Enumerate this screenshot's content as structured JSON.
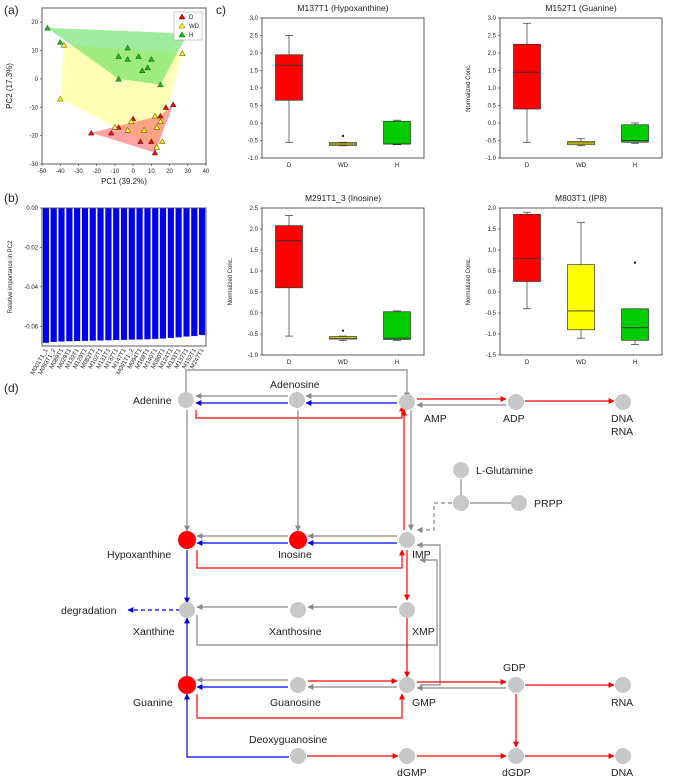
{
  "panel_labels": {
    "a": "(a)",
    "b": "(b)",
    "c": "c)",
    "d": "(d)"
  },
  "colors": {
    "D": "#ff0000",
    "WD": "#ffff00",
    "H": "#00cc00",
    "bar": "#0000ee",
    "node": "#c8c8c8",
    "node_hit": "#ff0000",
    "edge_red": "#ff0000",
    "edge_blue": "#0000ee",
    "edge_gray": "#888888"
  },
  "chart_data": [
    {
      "type": "scatter",
      "xlabel": "PC1 (39.2%)",
      "ylabel": "PC2 (17.3%)",
      "xlim": [
        -50,
        40
      ],
      "ylim": [
        -30,
        25
      ],
      "xticks": [
        -50,
        -40,
        -30,
        -20,
        -10,
        0,
        10,
        20,
        30,
        40
      ],
      "yticks": [
        -30,
        -20,
        -10,
        0,
        10,
        20
      ],
      "legend": {
        "placement": "top-right",
        "entries": [
          "D",
          "WD",
          "H"
        ]
      },
      "series": [
        {
          "name": "D",
          "points": [
            [
              -23,
              -19
            ],
            [
              -12,
              -19
            ],
            [
              -8,
              -17
            ],
            [
              0,
              -14
            ],
            [
              4,
              -22
            ],
            [
              10,
              -22
            ],
            [
              12,
              -26
            ],
            [
              15,
              -13
            ],
            [
              18,
              -10
            ],
            [
              22,
              -9
            ]
          ]
        },
        {
          "name": "WD",
          "points": [
            [
              -40,
              -7
            ],
            [
              -38,
              12
            ],
            [
              -10,
              -17
            ],
            [
              -3,
              -18
            ],
            [
              -1,
              -15
            ],
            [
              6,
              -18
            ],
            [
              12,
              -13
            ],
            [
              13,
              -17
            ],
            [
              13,
              -24
            ],
            [
              15,
              -15
            ],
            [
              16,
              -22
            ],
            [
              27,
              9
            ]
          ]
        },
        {
          "name": "H",
          "points": [
            [
              -47,
              18
            ],
            [
              -40,
              13
            ],
            [
              -8,
              0
            ],
            [
              -8,
              8
            ],
            [
              -3,
              7
            ],
            [
              -3,
              11
            ],
            [
              3,
              8
            ],
            [
              5,
              3
            ],
            [
              8,
              4
            ],
            [
              10,
              7
            ],
            [
              15,
              -2
            ],
            [
              30,
              16
            ]
          ]
        }
      ],
      "hulls": [
        {
          "name": "WD",
          "points": [
            [
              -40,
              -7
            ],
            [
              -38,
              12
            ],
            [
              27,
              9
            ],
            [
              13,
              -24
            ],
            [
              -10,
              -17
            ]
          ]
        },
        {
          "name": "H",
          "points": [
            [
              -47,
              18
            ],
            [
              30,
              16
            ],
            [
              15,
              -2
            ],
            [
              -8,
              0
            ]
          ]
        },
        {
          "name": "D",
          "points": [
            [
              -23,
              -19
            ],
            [
              15,
              -13
            ],
            [
              22,
              -9
            ],
            [
              12,
              -26
            ]
          ]
        }
      ]
    },
    {
      "type": "bar",
      "ylabel": "Relative importance in PC2",
      "ylim": [
        -0.07,
        0.0
      ],
      "yticks": [
        0.0,
        -0.02,
        -0.04,
        -0.06
      ],
      "categories": [
        "M001T1_1",
        "M093T1_2",
        "M089T1",
        "M029T1",
        "M132T1",
        "M129T1",
        "M082T1",
        "M102T1",
        "M131T1",
        "M137T1",
        "M147T1",
        "M091T1_2",
        "M094T1",
        "M169T1",
        "M140T1",
        "M080T1",
        "M124T1",
        "M133T1",
        "M137T1",
        "M152T1",
        "M247T1"
      ],
      "values": [
        -0.0685,
        -0.068,
        -0.0678,
        -0.0677,
        -0.0676,
        -0.0675,
        -0.0674,
        -0.0673,
        -0.0672,
        -0.0671,
        -0.067,
        -0.0669,
        -0.0668,
        -0.0667,
        -0.0665,
        -0.0663,
        -0.066,
        -0.0657,
        -0.0653,
        -0.065,
        -0.0645
      ]
    },
    {
      "type": "box",
      "title": "M137T1 (Hypoxanthine)",
      "ylabel": "",
      "ylim": [
        -1.0,
        3.0
      ],
      "yticks": [
        -1.0,
        -0.5,
        0.0,
        0.5,
        1.0,
        1.5,
        2.0,
        2.5,
        3.0
      ],
      "categories": [
        "D",
        "WD",
        "H"
      ],
      "boxes": [
        {
          "group": "D",
          "min": -0.55,
          "q1": 0.65,
          "median": 1.65,
          "q3": 1.95,
          "max": 2.5,
          "outliers": []
        },
        {
          "group": "WD",
          "min": -0.65,
          "q1": -0.64,
          "median": -0.6,
          "q3": -0.56,
          "max": -0.55,
          "outliers": [
            -0.37
          ]
        },
        {
          "group": "H",
          "min": -0.62,
          "q1": -0.6,
          "median": -0.6,
          "q3": 0.05,
          "max": 0.08,
          "outliers": []
        }
      ]
    },
    {
      "type": "box",
      "title": "M152T1 (Guanine)",
      "ylabel": "Normalized Conc.",
      "ylim": [
        -1.0,
        3.0
      ],
      "yticks": [
        -1.0,
        -0.5,
        0.0,
        0.5,
        1.0,
        1.5,
        2.0,
        2.5,
        3.0
      ],
      "categories": [
        "D",
        "WD",
        "H"
      ],
      "boxes": [
        {
          "group": "D",
          "min": -0.55,
          "q1": 0.4,
          "median": 1.45,
          "q3": 2.25,
          "max": 2.85,
          "outliers": []
        },
        {
          "group": "WD",
          "min": -0.65,
          "q1": -0.62,
          "median": -0.57,
          "q3": -0.53,
          "max": -0.45,
          "outliers": []
        },
        {
          "group": "H",
          "min": -0.58,
          "q1": -0.55,
          "median": -0.5,
          "q3": -0.05,
          "max": 0.0,
          "outliers": []
        }
      ]
    },
    {
      "type": "box",
      "title": "M291T1_3 (Inosine)",
      "ylabel": "Normalized Conc.",
      "ylim": [
        -1.0,
        2.5
      ],
      "yticks": [
        -1.0,
        -0.5,
        0.0,
        0.5,
        1.0,
        1.5,
        2.0,
        2.5
      ],
      "categories": [
        "D",
        "WD",
        "H"
      ],
      "boxes": [
        {
          "group": "D",
          "min": -0.55,
          "q1": 0.6,
          "median": 1.72,
          "q3": 2.08,
          "max": 2.32,
          "outliers": []
        },
        {
          "group": "WD",
          "min": -0.65,
          "q1": -0.62,
          "median": -0.6,
          "q3": -0.56,
          "max": -0.55,
          "outliers": [
            -0.42
          ]
        },
        {
          "group": "H",
          "min": -0.65,
          "q1": -0.63,
          "median": -0.6,
          "q3": 0.03,
          "max": 0.05,
          "outliers": []
        }
      ]
    },
    {
      "type": "box",
      "title": "M803T1 (IP8)",
      "ylabel": "Normalized Conc.",
      "ylim": [
        -1.5,
        2.0
      ],
      "yticks": [
        -1.5,
        -1.0,
        -0.5,
        0.0,
        0.5,
        1.0,
        1.5,
        2.0
      ],
      "categories": [
        "D",
        "WD",
        "H"
      ],
      "boxes": [
        {
          "group": "D",
          "min": -0.4,
          "q1": 0.25,
          "median": 0.8,
          "q3": 1.85,
          "max": 1.9,
          "outliers": []
        },
        {
          "group": "WD",
          "min": -1.1,
          "q1": -0.9,
          "median": -0.45,
          "q3": 0.65,
          "max": 1.65,
          "outliers": []
        },
        {
          "group": "H",
          "min": -1.25,
          "q1": -1.15,
          "median": -0.85,
          "q3": -0.4,
          "max": -0.4,
          "outliers": [
            0.7
          ]
        }
      ]
    }
  ],
  "pathway": {
    "nodes": [
      {
        "id": "adenine",
        "label": "Adenine",
        "hit": false
      },
      {
        "id": "adenosine",
        "label": "Adenosine",
        "hit": false
      },
      {
        "id": "amp",
        "label": "AMP",
        "hit": false
      },
      {
        "id": "adp",
        "label": "ADP",
        "hit": false
      },
      {
        "id": "dna1",
        "label": "DNA",
        "hit": false
      },
      {
        "id": "rna1",
        "label": "RNA",
        "hit": false
      },
      {
        "id": "lglutamine",
        "label": "L-Glutamine",
        "hit": false
      },
      {
        "id": "prpp",
        "label": "PRPP",
        "hit": false
      },
      {
        "id": "hypoxanthine",
        "label": "Hypoxanthine",
        "hit": true
      },
      {
        "id": "inosine",
        "label": "Inosine",
        "hit": true
      },
      {
        "id": "imp",
        "label": "IMP",
        "hit": false
      },
      {
        "id": "degradation",
        "label": "degradation",
        "hit": false
      },
      {
        "id": "xanthine",
        "label": "Xanthine",
        "hit": false
      },
      {
        "id": "xanthosine",
        "label": "Xanthosine",
        "hit": false
      },
      {
        "id": "xmp",
        "label": "XMP",
        "hit": false
      },
      {
        "id": "gdp",
        "label": "GDP",
        "hit": false
      },
      {
        "id": "guanine",
        "label": "Guanine",
        "hit": true
      },
      {
        "id": "guanosine",
        "label": "Guanosine",
        "hit": false
      },
      {
        "id": "gmp",
        "label": "GMP",
        "hit": false
      },
      {
        "id": "rna2",
        "label": "RNA",
        "hit": false
      },
      {
        "id": "deoxyguanosine",
        "label": "Deoxyguanosine",
        "hit": false
      },
      {
        "id": "dgmp",
        "label": "dGMP",
        "hit": false
      },
      {
        "id": "dgdp",
        "label": "dGDP",
        "hit": false
      },
      {
        "id": "dna2",
        "label": "DNA",
        "hit": false
      }
    ]
  }
}
